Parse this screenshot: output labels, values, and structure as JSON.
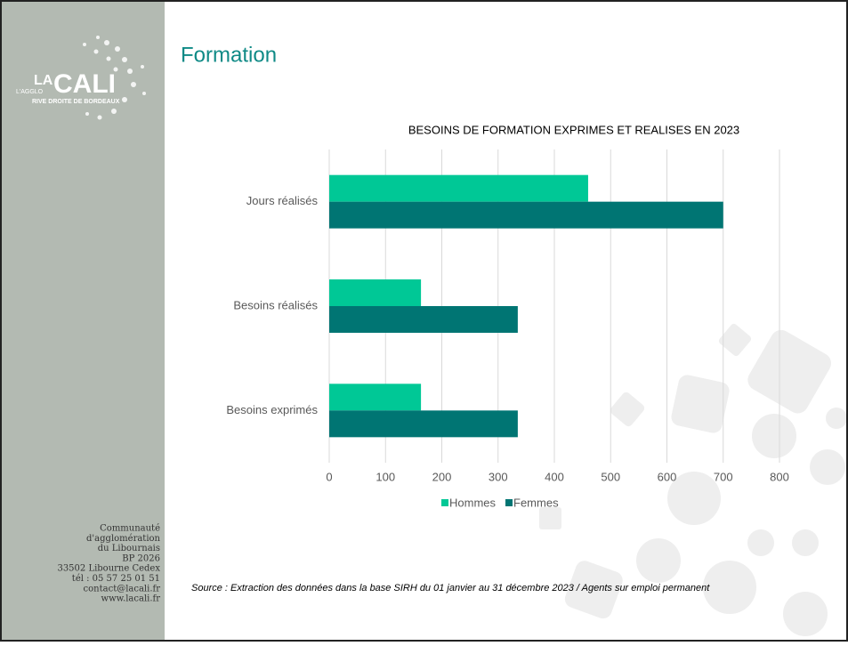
{
  "page_title": "Formation",
  "logo": {
    "la": "LA",
    "cali": "CALI",
    "agglo": "L'AGGLO",
    "tagline": "RIVE DROITE DE BORDEAUX"
  },
  "address": [
    "Communauté",
    "d'agglomération",
    "du Libournais",
    "BP 2026",
    "33502 Libourne Cedex",
    "tél : 05 57 25 01 51",
    "contact@lacali.fr",
    "www.lacali.fr"
  ],
  "source": "Source : Extraction des données dans la base SIRH du 01 janvier au 31 décembre 2023 / Agents sur emploi permanent",
  "chart_data": {
    "type": "hbar",
    "title": "BESOINS DE FORMATION EXPRIMES ET REALISES EN 2023",
    "categories": [
      "Jours réalisés",
      "Besoins réalisés",
      "Besoins exprimés"
    ],
    "series": [
      {
        "name": "Hommes",
        "color": "#00c896",
        "values": [
          460,
          163,
          163
        ]
      },
      {
        "name": "Femmes",
        "color": "#007573",
        "values": [
          700,
          335,
          335
        ]
      }
    ],
    "xlim": [
      0,
      800
    ],
    "xticks": [
      0,
      100,
      200,
      300,
      400,
      500,
      600,
      700,
      800
    ],
    "grid": true,
    "legend": "bottom"
  }
}
